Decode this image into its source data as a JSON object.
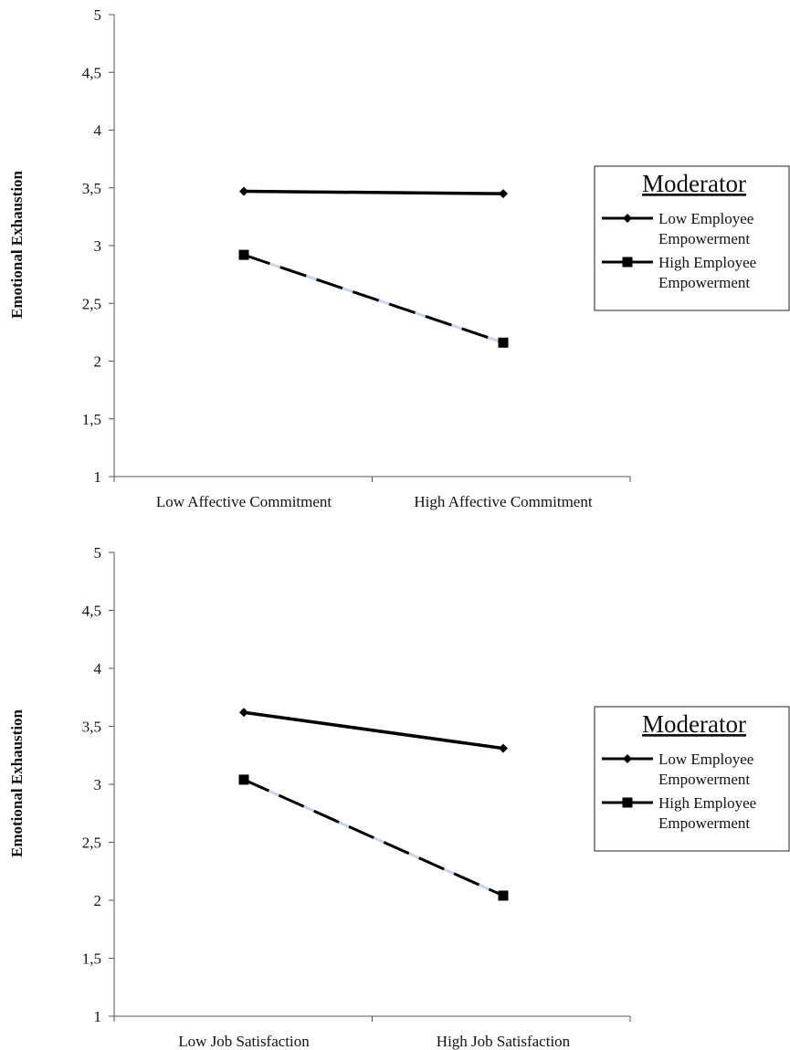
{
  "chart_data": [
    {
      "type": "line",
      "title": "",
      "xlabel": "",
      "ylabel": "Emotional Exhaustion",
      "ylim": [
        1,
        5
      ],
      "yticks": [
        "1",
        "1,5",
        "2",
        "2,5",
        "3",
        "3,5",
        "4",
        "4,5",
        "5"
      ],
      "categories": [
        "Low Affective Commitment",
        "High Affective Commitment"
      ],
      "grid": false,
      "legend": {
        "title": "Moderator",
        "position": "right"
      },
      "series": [
        {
          "name": "Low Employee Empowerment",
          "values": [
            3.47,
            3.45
          ],
          "color": "#000000",
          "style": "solid",
          "marker": "diamond"
        },
        {
          "name": "High Employee Empowerment",
          "values": [
            2.92,
            2.16
          ],
          "color": "#000000",
          "style": "dashed",
          "marker": "square"
        }
      ]
    },
    {
      "type": "line",
      "title": "",
      "xlabel": "",
      "ylabel": "Emotional Exhaustion",
      "ylim": [
        1,
        5
      ],
      "yticks": [
        "1",
        "1,5",
        "2",
        "2,5",
        "3",
        "3,5",
        "4",
        "4,5",
        "5"
      ],
      "categories": [
        "Low Job Satisfaction",
        "High Job Satisfaction"
      ],
      "grid": false,
      "legend": {
        "title": "Moderator",
        "position": "right"
      },
      "series": [
        {
          "name": "Low Employee Empowerment",
          "values": [
            3.62,
            3.31
          ],
          "color": "#000000",
          "style": "solid",
          "marker": "diamond"
        },
        {
          "name": "High Employee Empowerment",
          "values": [
            3.04,
            2.04
          ],
          "color": "#000000",
          "style": "dashed",
          "marker": "square"
        }
      ]
    }
  ]
}
